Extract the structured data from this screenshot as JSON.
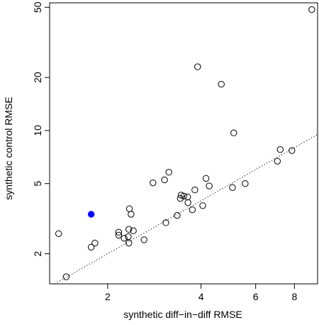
{
  "chart_data": {
    "type": "scatter",
    "title": "",
    "xlabel": "synthetic diff−in−diff RMSE",
    "ylabel": "synthetic control RMSE",
    "x_scale": "log",
    "y_scale": "log",
    "xlim": [
      1.3,
      9.5
    ],
    "ylim": [
      1.35,
      53
    ],
    "x_ticks": [
      {
        "value": 2,
        "label": "2"
      },
      {
        "value": 4,
        "label": "4"
      },
      {
        "value": 6,
        "label": "6"
      },
      {
        "value": 8,
        "label": "8"
      }
    ],
    "y_ticks": [
      {
        "value": 2,
        "label": "2"
      },
      {
        "value": 5,
        "label": "5"
      },
      {
        "value": 10,
        "label": "10"
      },
      {
        "value": 20,
        "label": "20"
      },
      {
        "value": 50,
        "label": "50"
      }
    ],
    "reference_line": {
      "style": "dotted",
      "slope": 1,
      "intercept": 0
    },
    "grid": false,
    "colors": {
      "points": "#000000",
      "highlight": "#0000ff",
      "axes": "#000000"
    },
    "points": [
      {
        "x": 9.1,
        "y": 48.5
      },
      {
        "x": 3.9,
        "y": 23.0
      },
      {
        "x": 4.65,
        "y": 18.3
      },
      {
        "x": 5.1,
        "y": 9.7
      },
      {
        "x": 7.2,
        "y": 7.8
      },
      {
        "x": 7.85,
        "y": 7.7
      },
      {
        "x": 7.05,
        "y": 6.7
      },
      {
        "x": 3.15,
        "y": 5.8
      },
      {
        "x": 3.05,
        "y": 5.25
      },
      {
        "x": 2.8,
        "y": 5.05
      },
      {
        "x": 4.15,
        "y": 5.35
      },
      {
        "x": 4.25,
        "y": 4.85
      },
      {
        "x": 5.55,
        "y": 5.0
      },
      {
        "x": 5.05,
        "y": 4.75
      },
      {
        "x": 3.82,
        "y": 4.6
      },
      {
        "x": 3.45,
        "y": 4.3
      },
      {
        "x": 3.52,
        "y": 4.25
      },
      {
        "x": 3.62,
        "y": 4.2
      },
      {
        "x": 3.43,
        "y": 4.12
      },
      {
        "x": 3.63,
        "y": 3.9
      },
      {
        "x": 3.75,
        "y": 3.55
      },
      {
        "x": 4.05,
        "y": 3.75
      },
      {
        "x": 2.35,
        "y": 3.6
      },
      {
        "x": 2.38,
        "y": 3.35
      },
      {
        "x": 3.35,
        "y": 3.3
      },
      {
        "x": 3.08,
        "y": 3.0
      },
      {
        "x": 2.42,
        "y": 2.7
      },
      {
        "x": 2.34,
        "y": 2.75
      },
      {
        "x": 2.17,
        "y": 2.65
      },
      {
        "x": 2.17,
        "y": 2.55
      },
      {
        "x": 2.26,
        "y": 2.45
      },
      {
        "x": 2.33,
        "y": 2.5
      },
      {
        "x": 2.34,
        "y": 2.3
      },
      {
        "x": 2.62,
        "y": 2.4
      },
      {
        "x": 1.82,
        "y": 2.3
      },
      {
        "x": 1.77,
        "y": 2.18
      },
      {
        "x": 1.39,
        "y": 2.6
      },
      {
        "x": 1.47,
        "y": 1.48
      },
      {
        "x": 1.77,
        "y": 3.35,
        "highlight": true
      }
    ]
  }
}
